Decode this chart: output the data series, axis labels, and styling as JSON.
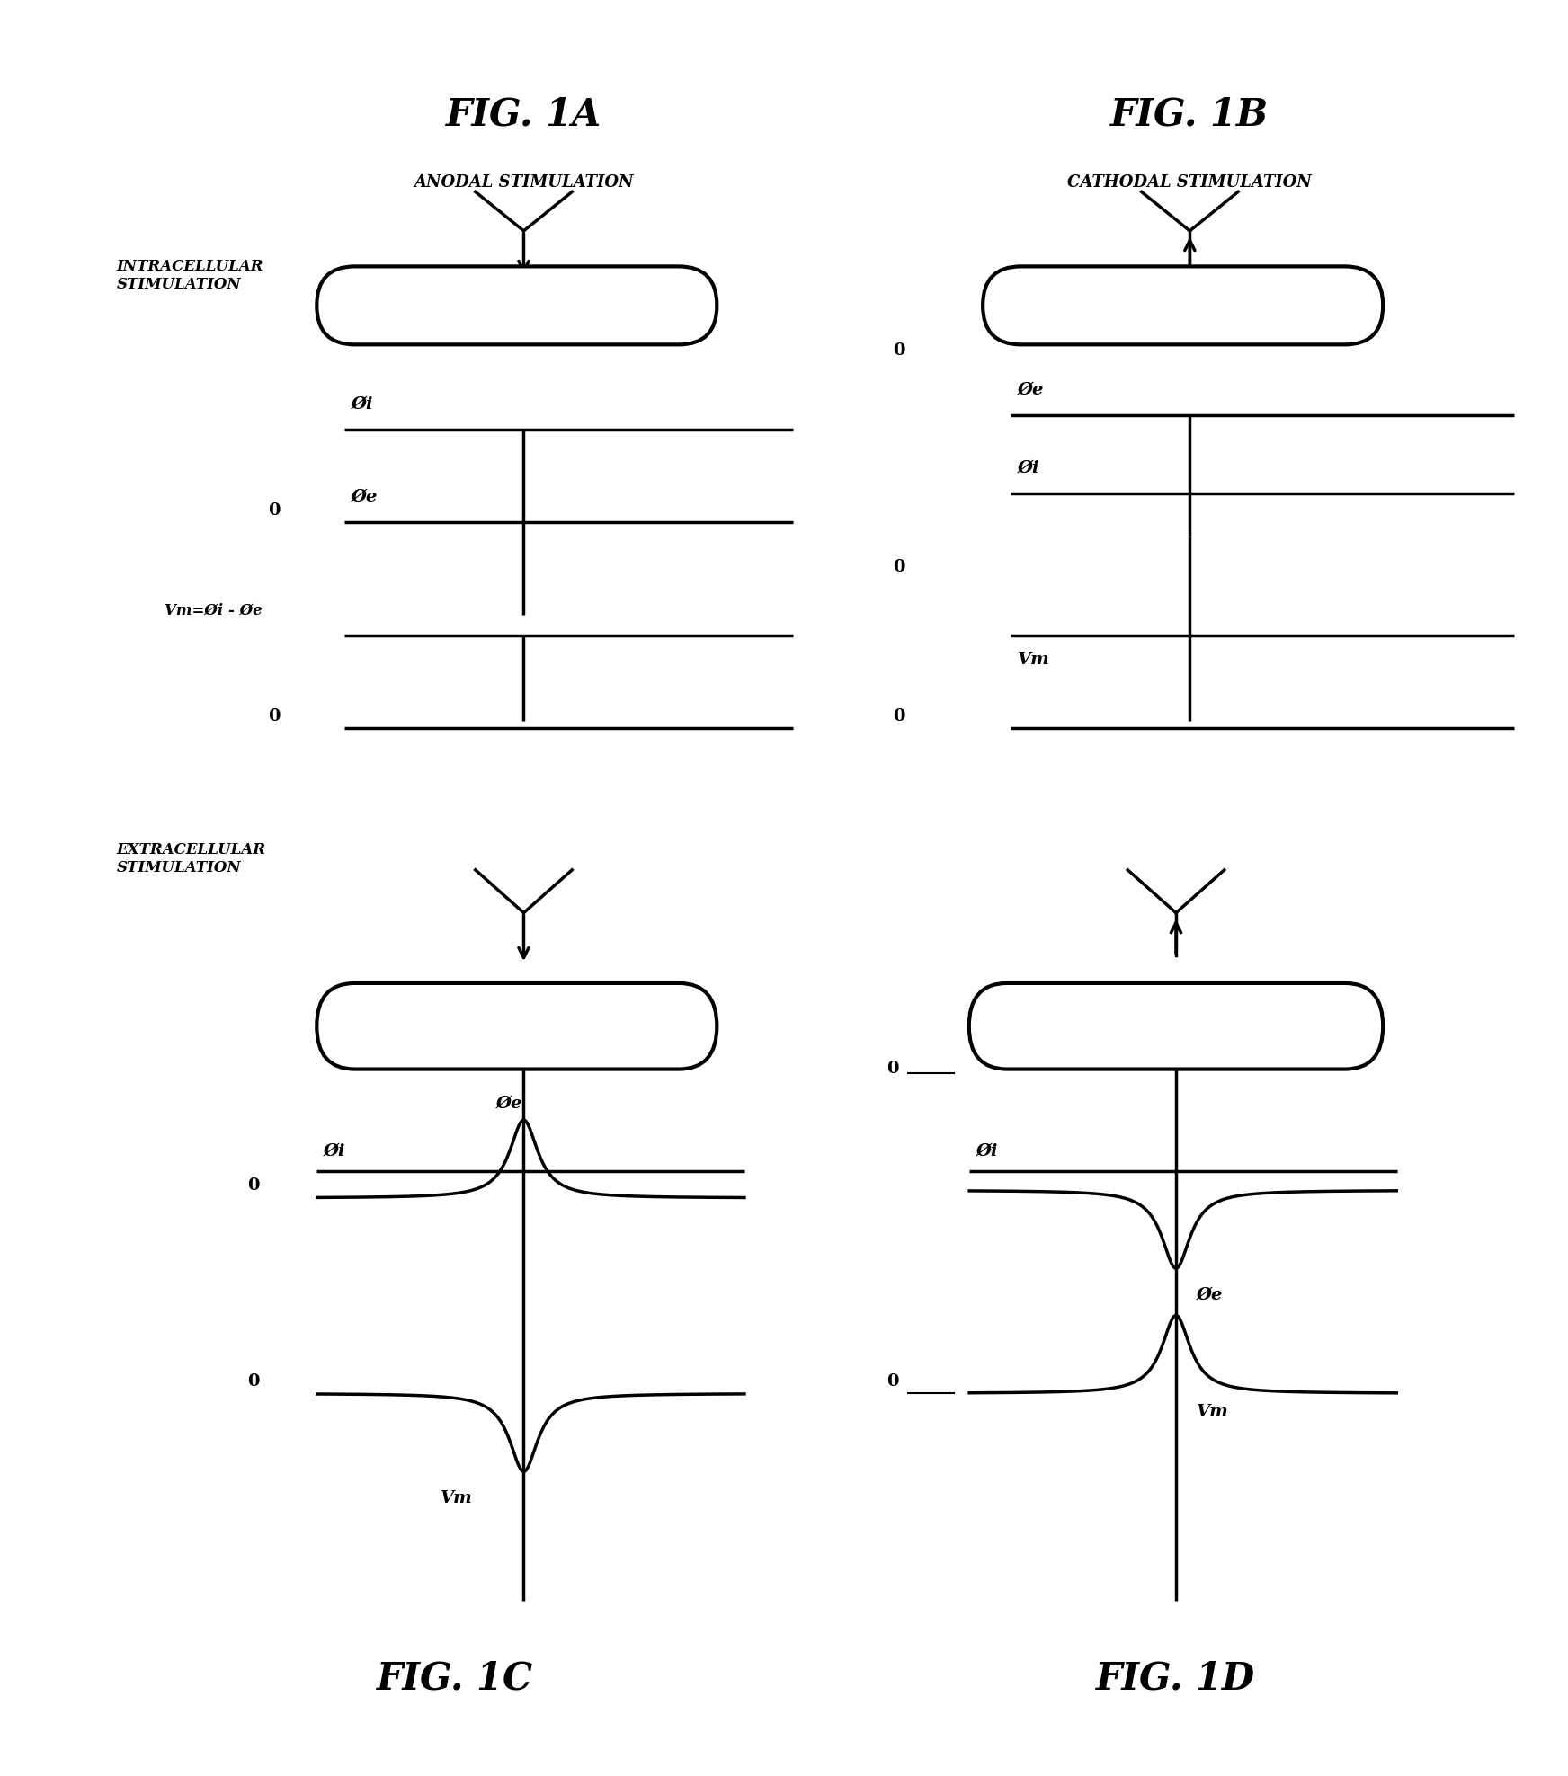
{
  "fig_title_A": "FIG. 1A",
  "fig_title_B": "FIG. 1B",
  "fig_title_C": "FIG. 1C",
  "fig_title_D": "FIG. 1D",
  "subtitle_A": "ANODAL STIMULATION",
  "subtitle_B": "CATHODAL STIMULATION",
  "label_intra": "INTRACELLULAR\nSTIMULATION",
  "label_extra": "EXTRACELLULAR\nSTIMULATION",
  "phi_i": "Øi",
  "phi_e": "Øe",
  "vm_label_A": "Vm=Øi - Øe",
  "vm_label": "Vm",
  "background_color": "#ffffff",
  "line_color": "#000000"
}
